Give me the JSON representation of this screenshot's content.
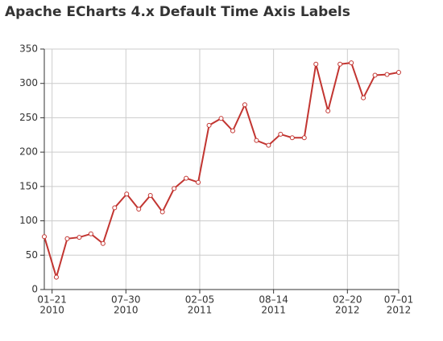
{
  "chart_data": {
    "type": "line",
    "title": "Apache ECharts 4.x Default Time Axis Labels",
    "x": [
      "2010-01-01",
      "2010-02-01",
      "2010-03-01",
      "2010-04-01",
      "2010-05-01",
      "2010-06-01",
      "2010-07-01",
      "2010-08-01",
      "2010-09-01",
      "2010-10-01",
      "2010-11-01",
      "2010-12-01",
      "2011-01-01",
      "2011-02-01",
      "2011-03-01",
      "2011-04-01",
      "2011-05-01",
      "2011-06-01",
      "2011-07-01",
      "2011-08-01",
      "2011-09-01",
      "2011-10-01",
      "2011-11-01",
      "2011-12-01",
      "2012-01-01",
      "2012-02-01",
      "2012-03-01",
      "2012-04-01",
      "2012-05-01",
      "2012-06-01",
      "2012-07-01"
    ],
    "series": [
      {
        "color": "#c23531",
        "values": [
          77,
          18,
          74,
          76,
          81,
          67,
          119,
          139,
          117,
          137,
          113,
          147,
          162,
          156,
          239,
          249,
          231,
          269,
          217,
          210,
          226,
          221,
          221,
          328,
          260,
          328,
          330,
          279,
          312,
          313,
          316
        ]
      }
    ],
    "xlim": [
      "2010-01-01",
      "2012-07-01"
    ],
    "xticks": [
      {
        "value": "2010-01-21",
        "label": "01–21",
        "year": "2010"
      },
      {
        "value": "2010-07-30",
        "label": "07–30",
        "year": "2010"
      },
      {
        "value": "2011-02-05",
        "label": "02–05",
        "year": "2011"
      },
      {
        "value": "2011-08-14",
        "label": "08–14",
        "year": "2011"
      },
      {
        "value": "2012-02-20",
        "label": "02–20",
        "year": "2012"
      },
      {
        "value": "2012-07-01",
        "label": "07–01",
        "year": "2012"
      }
    ],
    "ylim": [
      0,
      350
    ],
    "yticks": [
      0,
      50,
      100,
      150,
      200,
      250,
      300,
      350
    ],
    "grid": true
  }
}
